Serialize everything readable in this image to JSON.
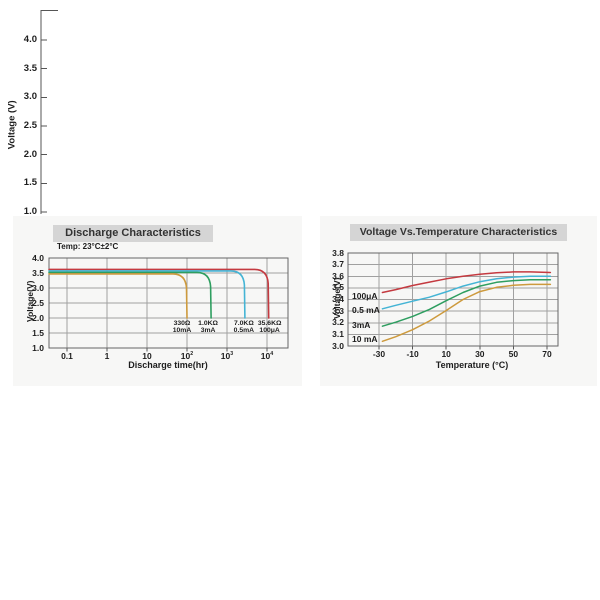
{
  "top_axis_fragment": {
    "ylabel": "Voltage (V)",
    "ticks": [
      "4.0",
      "3.5",
      "3.0",
      "2.5",
      "2.0",
      "1.5",
      "1.0"
    ]
  },
  "colors": {
    "red": "#c43a40",
    "cyan": "#44b4d5",
    "green": "#2e9e60",
    "orange": "#cd9a3d",
    "grid": "#a0a0a0",
    "axis": "#555555",
    "border": "#666666",
    "title_bar_bg": "#d5d5d5",
    "title_text": "#333333"
  },
  "chart_data": [
    {
      "type": "line",
      "title": "Discharge Characteristics",
      "note": "Temp: 23°C±2°C",
      "xlabel": "Discharge time(hr)",
      "ylabel": "Voltage(V)",
      "x_scale": "log",
      "x_ticks": [
        0.1,
        1,
        10,
        100,
        1000,
        10000
      ],
      "x_tick_labels": [
        "0.1",
        "1",
        "10",
        "10^2",
        "10^3",
        "10^4"
      ],
      "y_ticks": [
        4.0,
        3.5,
        3.0,
        2.5,
        2.0,
        1.5,
        1.0
      ],
      "ylim": [
        1.0,
        4.0
      ],
      "grid": true,
      "series": [
        {
          "name": "35.6KΩ 100μA",
          "color": "#c43a40",
          "plateau_v": 3.62,
          "drop_hr": 11000,
          "end_v": 2.0
        },
        {
          "name": "7.0KΩ 0.5mA",
          "color": "#44b4d5",
          "plateau_v": 3.57,
          "drop_hr": 2800,
          "end_v": 2.0
        },
        {
          "name": "1.0KΩ 3mA",
          "color": "#2e9e60",
          "plateau_v": 3.52,
          "drop_hr": 400,
          "end_v": 2.0
        },
        {
          "name": "330Ω 10mA",
          "color": "#cd9a3d",
          "plateau_v": 3.47,
          "drop_hr": 100,
          "end_v": 2.0
        }
      ]
    },
    {
      "type": "line",
      "title": "Voltage Vs.Temperature Characteristics",
      "xlabel": "Temperature (°C)",
      "ylabel": "Voltage(V)",
      "x_ticks": [
        -30,
        -10,
        10,
        30,
        50,
        70
      ],
      "y_ticks": [
        3.8,
        3.7,
        3.6,
        3.5,
        3.4,
        3.3,
        3.2,
        3.1,
        3.0
      ],
      "ylim": [
        3.0,
        3.8
      ],
      "xlim": [
        -48,
        76
      ],
      "grid": true,
      "series": [
        {
          "name": "100μA",
          "color": "#c43a40",
          "label_v": 3.42,
          "x": [
            -28,
            -20,
            -10,
            0,
            10,
            20,
            30,
            40,
            50,
            60,
            72
          ],
          "y": [
            3.46,
            3.485,
            3.52,
            3.55,
            3.578,
            3.6,
            3.618,
            3.63,
            3.637,
            3.637,
            3.632
          ]
        },
        {
          "name": "0.5 mA",
          "color": "#44b4d5",
          "label_v": 3.3,
          "x": [
            -28,
            -20,
            -10,
            0,
            10,
            20,
            30,
            40,
            50,
            60,
            72
          ],
          "y": [
            3.32,
            3.35,
            3.385,
            3.42,
            3.465,
            3.515,
            3.553,
            3.578,
            3.593,
            3.6,
            3.6
          ]
        },
        {
          "name": "3mA",
          "color": "#2e9e60",
          "label_v": 3.175,
          "x": [
            -28,
            -20,
            -10,
            0,
            10,
            20,
            30,
            40,
            50,
            60,
            72
          ],
          "y": [
            3.17,
            3.205,
            3.255,
            3.315,
            3.39,
            3.46,
            3.515,
            3.548,
            3.563,
            3.57,
            3.57
          ]
        },
        {
          "name": "10 mA",
          "color": "#cd9a3d",
          "label_v": 3.055,
          "x": [
            -28,
            -20,
            -10,
            0,
            10,
            20,
            30,
            40,
            50,
            60,
            72
          ],
          "y": [
            3.04,
            3.08,
            3.14,
            3.215,
            3.305,
            3.4,
            3.468,
            3.505,
            3.522,
            3.53,
            3.53
          ]
        }
      ]
    }
  ]
}
